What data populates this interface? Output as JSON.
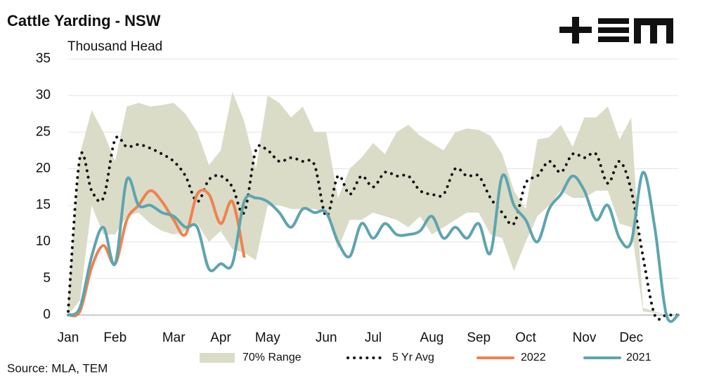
{
  "chart_data": {
    "type": "line",
    "title": "Cattle Yarding - NSW",
    "y_label": "Thousand Head",
    "source": "Source: MLA, TEM",
    "categories": [
      "Jan",
      null,
      null,
      null,
      "Feb",
      null,
      null,
      null,
      null,
      "Mar",
      null,
      null,
      null,
      "Apr",
      null,
      null,
      null,
      "May",
      null,
      null,
      null,
      null,
      "Jun",
      null,
      null,
      null,
      "Jul",
      null,
      null,
      null,
      null,
      "Aug",
      null,
      null,
      null,
      "Sep",
      null,
      null,
      null,
      "Oct",
      null,
      null,
      null,
      null,
      "Nov",
      null,
      null,
      null,
      "Dec",
      null,
      null,
      null,
      null
    ],
    "ylim": [
      0,
      35
    ],
    "yticks": [
      0,
      5,
      10,
      15,
      20,
      25,
      30,
      35
    ],
    "grid": true,
    "series": [
      {
        "name": "70% Range",
        "color": "#dadcc8",
        "upper": [
          2,
          22,
          28,
          25,
          21,
          28.5,
          29,
          28.5,
          28.7,
          29,
          27.5,
          25,
          20.5,
          22.5,
          30.5,
          26.5,
          20,
          30,
          29,
          27,
          28.5,
          25,
          25,
          16,
          20,
          21.5,
          23.5,
          22,
          25,
          26,
          24.5,
          23.5,
          22.5,
          25,
          25.5,
          25.3,
          24.5,
          22,
          17,
          14.5,
          24,
          24.3,
          26,
          23,
          27,
          27,
          28.5,
          24,
          27,
          1,
          0.5,
          0,
          0
        ],
        "lower": [
          0,
          2,
          15,
          11,
          11,
          13.5,
          14,
          12.5,
          11.5,
          11,
          11.5,
          12.5,
          10,
          11.5,
          9,
          8.5,
          7.5,
          15,
          15,
          14.5,
          14.5,
          14.5,
          14,
          9,
          13,
          13,
          14,
          13.5,
          13,
          12,
          13.5,
          11,
          12,
          13,
          14,
          14,
          11,
          10.5,
          6,
          10,
          13.5,
          15,
          17,
          16,
          16,
          17,
          17,
          12.5,
          12,
          0.5,
          0.3,
          0,
          0
        ]
      },
      {
        "name": "5 Yr Avg",
        "color": "#111111",
        "dotted": true,
        "values": [
          0.5,
          21.5,
          17,
          16,
          24,
          23,
          23.3,
          22.8,
          22,
          21,
          19,
          15.5,
          18.5,
          19,
          17.5,
          14,
          22.5,
          22.5,
          21,
          21.5,
          21,
          20.5,
          13.5,
          19,
          16.5,
          19,
          17.5,
          19.5,
          19,
          19,
          17,
          16.5,
          16.5,
          20,
          19,
          19,
          16,
          14,
          12.5,
          18,
          19,
          21,
          19.5,
          22,
          21.5,
          22,
          18,
          21,
          17,
          8,
          0,
          0,
          0
        ]
      },
      {
        "name": "2022",
        "color": "#f0824f",
        "values": [
          0,
          0.5,
          6.5,
          9.5,
          7,
          13,
          15,
          17,
          15.5,
          13,
          11,
          16.5,
          16.5,
          12.5,
          15.5,
          8,
          null,
          null,
          null,
          null,
          null,
          null,
          null,
          null,
          null,
          null,
          null,
          null,
          null,
          null,
          null,
          null,
          null,
          null,
          null,
          null,
          null,
          null,
          null,
          null,
          null,
          null,
          null,
          null,
          null,
          null,
          null,
          null,
          null,
          null,
          null,
          null,
          null
        ]
      },
      {
        "name": "2021",
        "color": "#5ea5ae",
        "values": [
          0,
          1,
          8,
          12,
          7,
          18.5,
          15,
          15,
          14,
          13.5,
          12,
          12,
          6.3,
          7,
          7,
          15.5,
          16,
          15.5,
          14,
          12,
          14.5,
          14,
          14,
          10,
          8,
          12.5,
          10.5,
          12.5,
          11,
          11,
          11.5,
          13.5,
          10.5,
          12,
          10.5,
          12.5,
          8.5,
          19,
          15,
          13,
          10,
          14.5,
          16.5,
          19,
          17,
          13,
          15,
          10.5,
          10,
          19.5,
          12,
          0,
          0
        ]
      }
    ]
  }
}
